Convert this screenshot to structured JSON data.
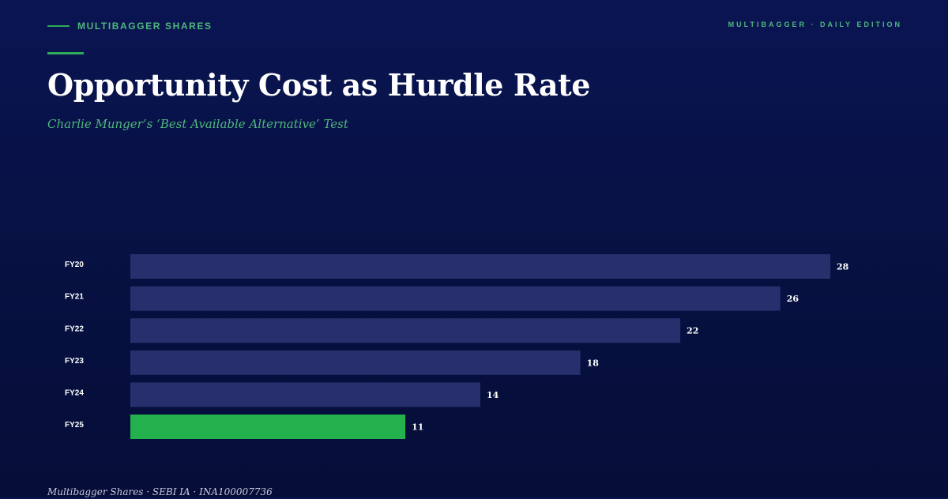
{
  "header": {
    "brand": "MULTIBAGGER SHARES",
    "edition": "MULTIBAGGER · DAILY EDITION"
  },
  "title": "Opportunity Cost as Hurdle Rate",
  "subtitle": "Charlie Munger’s ‘Best Available Alternative’ Test",
  "footer": "Multibagger Shares · SEBI IA · INA100007736",
  "colors": {
    "bar": "#27306d",
    "highlight": "#22b14c",
    "accent": "#4fb87c",
    "background": "#071141",
    "label": "#ffffff"
  },
  "chart_data": {
    "type": "bar",
    "orientation": "horizontal",
    "categories": [
      "FY20",
      "FY21",
      "FY22",
      "FY23",
      "FY24",
      "FY25"
    ],
    "values": [
      28,
      26,
      22,
      18,
      14,
      11
    ],
    "highlight_category": "FY25",
    "title": "",
    "xlabel": "",
    "ylabel": "",
    "xlim": [
      0,
      28
    ],
    "grid": false,
    "data_labels": true
  }
}
